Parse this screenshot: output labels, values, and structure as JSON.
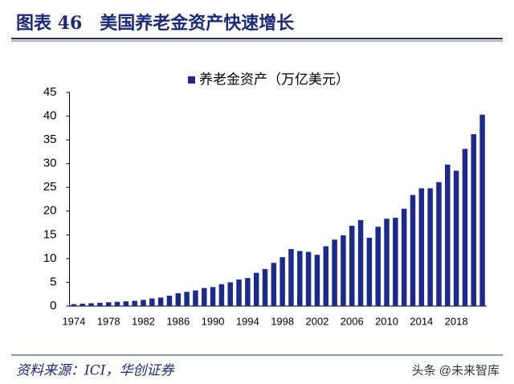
{
  "header": {
    "title": "图表 46　美国养老金资产快速增长"
  },
  "chart_data": {
    "type": "bar",
    "categories": [
      "1974",
      null,
      null,
      null,
      "1978",
      null,
      null,
      null,
      "1982",
      null,
      null,
      null,
      "1986",
      null,
      null,
      null,
      "1990",
      null,
      null,
      null,
      "1994",
      null,
      null,
      null,
      "1998",
      null,
      null,
      null,
      "2002",
      null,
      null,
      null,
      "2006",
      null,
      null,
      null,
      "2010",
      null,
      null,
      null,
      "2014",
      null,
      null,
      null,
      "2018",
      null,
      null,
      null
    ],
    "series": [
      {
        "name": "养老金资产（万亿美元）",
        "color": "#1b2a8c",
        "values": [
          0.4,
          0.5,
          0.6,
          0.7,
          0.8,
          0.9,
          1.0,
          1.1,
          1.3,
          1.6,
          1.8,
          2.2,
          2.7,
          3.0,
          3.3,
          3.8,
          4.0,
          4.6,
          5.0,
          5.6,
          5.9,
          7.0,
          7.8,
          9.1,
          10.3,
          12.0,
          11.6,
          11.4,
          10.8,
          12.6,
          14.0,
          14.9,
          16.9,
          18.1,
          14.4,
          16.7,
          18.4,
          18.6,
          20.5,
          23.4,
          24.8,
          24.8,
          26.1,
          29.8,
          28.5,
          33.1,
          36.2,
          40.3
        ]
      }
    ],
    "ylim": [
      0,
      45
    ],
    "yticks": [
      0,
      5,
      10,
      15,
      20,
      25,
      30,
      35,
      40,
      45
    ],
    "grid": false,
    "legend": "top"
  },
  "source": "资料来源：ICI，华创证券",
  "watermark": "头条 @未来智库"
}
